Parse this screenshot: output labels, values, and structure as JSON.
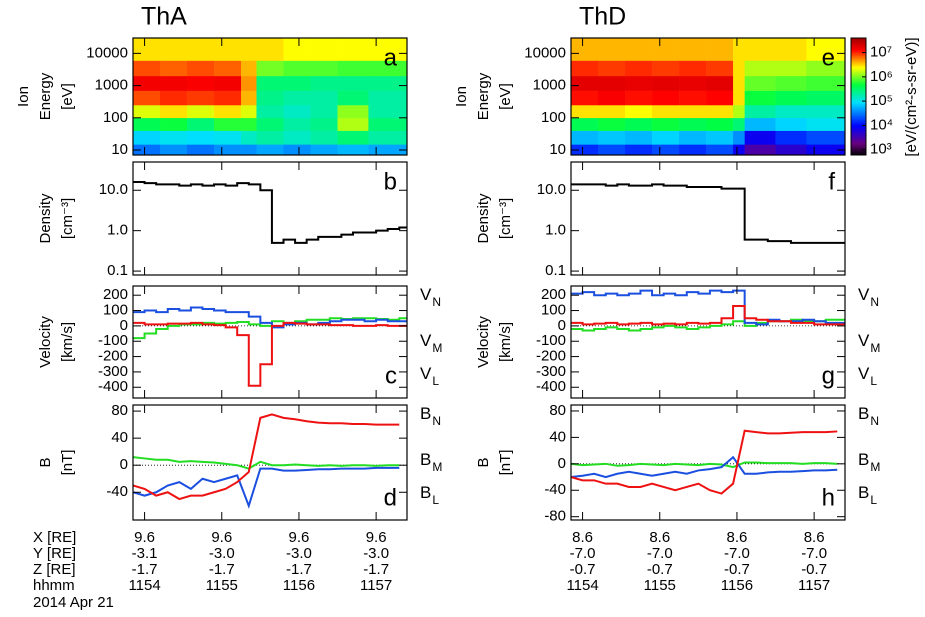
{
  "probes": [
    {
      "title": "ThA",
      "color": "#1a4fe0"
    },
    {
      "title": "ThD",
      "color": "#ee1111"
    }
  ],
  "colorbar": {
    "label": "[eV/(cm²-s-sr-eV)]",
    "clim": [
      600,
      40000000
    ],
    "log": true,
    "ticks": [
      {
        "value": 1000,
        "label": "10³"
      },
      {
        "value": 10000,
        "label": "10⁴"
      },
      {
        "value": 100000,
        "label": "10⁵"
      },
      {
        "value": 1000000,
        "label": "10⁶"
      },
      {
        "value": 10000000,
        "label": "10⁷"
      }
    ]
  },
  "ephemeris": {
    "row_labels": [
      "X [RE]",
      "Y [RE]",
      "Z [RE]",
      "hhmm"
    ],
    "probes": [
      [
        [
          "9.6",
          "9.6",
          "9.6",
          "9.6"
        ],
        [
          "-3.1",
          "-3.0",
          "-3.0",
          "-3.0"
        ],
        [
          "-1.7",
          "-1.7",
          "-1.7",
          "-1.7"
        ],
        [
          "1154",
          "1155",
          "1156",
          "1157"
        ]
      ],
      [
        [
          "8.6",
          "8.6",
          "8.6",
          "8.6"
        ],
        [
          "-7.0",
          "-7.0",
          "-7.0",
          "-7.0"
        ],
        [
          "-0.7",
          "-0.7",
          "-0.7",
          "-0.7"
        ],
        [
          "1154",
          "1155",
          "1156",
          "1157"
        ]
      ]
    ]
  },
  "date": "2014 Apr 21",
  "chart_data": [
    {
      "type": "spectrogram",
      "panel": "a",
      "ylabel": [
        "Ion",
        "Energy"
      ],
      "yunit": "[eV]",
      "ylog": true,
      "ylim": [
        7,
        30000
      ],
      "yticks": [
        10,
        100,
        1000,
        10000
      ],
      "xlim": [
        1153.85,
        1157.4
      ],
      "xticks": [
        1154,
        1155,
        1156,
        1157
      ],
      "x": [
        1153.85,
        1154.2,
        1154.55,
        1154.9,
        1155.25,
        1155.45,
        1155.8,
        1156.15,
        1156.5,
        1156.9,
        1157.4
      ],
      "energy_bins": [
        7,
        15,
        40,
        100,
        250,
        700,
        2000,
        6000,
        30000
      ],
      "values": [
        [
          30000,
          80000,
          400000,
          2000000,
          8000000,
          15000000,
          8000000,
          3000000
        ],
        [
          40000,
          100000,
          500000,
          3000000,
          10000000,
          15000000,
          7000000,
          3000000
        ],
        [
          30000,
          90000,
          300000,
          2000000,
          9000000,
          14000000,
          8000000,
          3000000
        ],
        [
          40000,
          100000,
          600000,
          3000000,
          10000000,
          15000000,
          7000000,
          3000000
        ],
        [
          40000,
          150000,
          600000,
          2000000,
          4000000,
          5000000,
          4000000,
          3000000
        ],
        [
          50000,
          200000,
          300000,
          200000,
          250000,
          300000,
          1000000,
          3000000
        ],
        [
          40000,
          150000,
          200000,
          150000,
          200000,
          300000,
          800000,
          2500000
        ],
        [
          50000,
          200000,
          250000,
          200000,
          200000,
          250000,
          800000,
          2500000
        ],
        [
          60000,
          300000,
          1500000,
          1200000,
          300000,
          250000,
          700000,
          2500000
        ],
        [
          50000,
          200000,
          300000,
          200000,
          200000,
          250000,
          700000,
          2500000
        ]
      ]
    },
    {
      "type": "line",
      "panel": "b",
      "ylabel": [
        "Density"
      ],
      "yunit": "[cm⁻³]",
      "ylog": true,
      "step": true,
      "ylim": [
        0.08,
        50
      ],
      "yticks": [
        0.1,
        {
          "value": 1,
          "label": "1.0"
        },
        {
          "value": 10,
          "label": "10.0"
        }
      ],
      "xlim": [
        1153.85,
        1157.4
      ],
      "xticks": [
        1154,
        1155,
        1156,
        1157
      ],
      "x": [
        1153.85,
        1154,
        1154.15,
        1154.3,
        1154.45,
        1154.6,
        1154.75,
        1154.9,
        1155.05,
        1155.2,
        1155.35,
        1155.5,
        1155.65,
        1155.8,
        1155.95,
        1156.1,
        1156.25,
        1156.4,
        1156.55,
        1156.7,
        1156.85,
        1157,
        1157.15,
        1157.3
      ],
      "series": [
        {
          "color": "#000000",
          "values": [
            16,
            15,
            14,
            14,
            13,
            14,
            13,
            14,
            13,
            15,
            14,
            10,
            0.5,
            0.6,
            0.5,
            0.6,
            0.7,
            0.7,
            0.8,
            0.9,
            0.9,
            1.0,
            1.1,
            1.2
          ]
        }
      ]
    },
    {
      "type": "line",
      "panel": "c",
      "ylabel": [
        "Velocity"
      ],
      "yunit": "[km/s]",
      "step": true,
      "zero_line": true,
      "ylim": [
        -470,
        260
      ],
      "yticks": [
        -400,
        -300,
        -200,
        -100,
        0,
        100,
        200
      ],
      "xlim": [
        1153.85,
        1157.4
      ],
      "xticks": [
        1154,
        1155,
        1156,
        1157
      ],
      "x": [
        1153.85,
        1154,
        1154.15,
        1154.3,
        1154.45,
        1154.6,
        1154.75,
        1154.9,
        1155.05,
        1155.2,
        1155.35,
        1155.5,
        1155.65,
        1155.8,
        1155.95,
        1156.1,
        1156.25,
        1156.4,
        1156.55,
        1156.7,
        1156.85,
        1157,
        1157.15,
        1157.3
      ],
      "series": [
        {
          "name": "VN",
          "color": "#22dd22",
          "values": [
            -80,
            -50,
            -20,
            0,
            10,
            10,
            20,
            15,
            20,
            25,
            10,
            0,
            30,
            20,
            30,
            40,
            40,
            50,
            45,
            50,
            50,
            45,
            40,
            50
          ]
        },
        {
          "name": "VM",
          "color": "#1a4fe0",
          "values": [
            90,
            100,
            90,
            110,
            100,
            120,
            110,
            100,
            90,
            90,
            60,
            20,
            -10,
            10,
            20,
            10,
            20,
            30,
            40,
            40,
            30,
            40,
            30,
            30
          ]
        },
        {
          "name": "VL",
          "color": "#ee1111",
          "values": [
            20,
            10,
            10,
            15,
            15,
            20,
            10,
            5,
            -10,
            -60,
            -390,
            -250,
            0,
            20,
            15,
            10,
            10,
            5,
            5,
            0,
            0,
            5,
            0,
            0
          ]
        }
      ]
    },
    {
      "type": "line",
      "panel": "d",
      "ylabel": [
        "B"
      ],
      "yunit": "[nT]",
      "zero_line": true,
      "ylim": [
        -81,
        89
      ],
      "yticks": [
        -40,
        0,
        40,
        80
      ],
      "xlim": [
        1153.85,
        1157.4
      ],
      "xticks": [
        1154,
        1155,
        1156,
        1157
      ],
      "x": [
        1153.85,
        1154,
        1154.15,
        1154.3,
        1154.45,
        1154.6,
        1154.75,
        1154.9,
        1155.05,
        1155.2,
        1155.35,
        1155.5,
        1155.65,
        1155.8,
        1155.95,
        1156.1,
        1156.25,
        1156.4,
        1156.55,
        1156.7,
        1156.85,
        1157,
        1157.15,
        1157.3
      ],
      "series": [
        {
          "name": "BN",
          "color": "#22dd22",
          "values": [
            12,
            10,
            8,
            8,
            5,
            6,
            5,
            4,
            2,
            0,
            -5,
            5,
            0,
            0,
            1,
            0,
            -1,
            0,
            -1,
            0,
            0,
            -1,
            0,
            0
          ]
        },
        {
          "name": "BM",
          "color": "#1a4fe0",
          "values": [
            -40,
            -45,
            -40,
            -30,
            -25,
            -35,
            -20,
            -25,
            -20,
            -15,
            -60,
            -5,
            -5,
            -8,
            -8,
            -7,
            -6,
            -6,
            -5,
            -5,
            -5,
            -4,
            -4,
            -4
          ]
        },
        {
          "name": "BL",
          "color": "#ee1111",
          "values": [
            -30,
            -35,
            -45,
            -40,
            -50,
            -45,
            -45,
            -40,
            -35,
            -25,
            -10,
            70,
            75,
            70,
            68,
            65,
            63,
            62,
            62,
            61,
            61,
            60,
            60,
            60
          ]
        }
      ]
    },
    {
      "type": "spectrogram",
      "panel": "e",
      "ylabel": [
        "Ion",
        "Energy"
      ],
      "yunit": "[eV]",
      "ylog": true,
      "ylim": [
        7,
        30000
      ],
      "yticks": [
        10,
        100,
        1000,
        10000
      ],
      "xlim": [
        1153.85,
        1157.4
      ],
      "xticks": [
        1154,
        1155,
        1156,
        1157
      ],
      "x": [
        1153.85,
        1154.2,
        1154.55,
        1154.9,
        1155.25,
        1155.6,
        1155.95,
        1156.1,
        1156.5,
        1156.9,
        1157.4
      ],
      "energy_bins": [
        7,
        15,
        40,
        100,
        250,
        700,
        2000,
        6000,
        30000
      ],
      "values": [
        [
          15000,
          60000,
          400000,
          3000000,
          12000000,
          18000000,
          10000000,
          4000000
        ],
        [
          20000,
          70000,
          500000,
          3000000,
          14000000,
          18000000,
          9000000,
          4000000
        ],
        [
          15000,
          60000,
          400000,
          2500000,
          12000000,
          17000000,
          10000000,
          4000000
        ],
        [
          20000,
          80000,
          500000,
          3000000,
          13000000,
          18000000,
          9000000,
          4000000
        ],
        [
          15000,
          60000,
          400000,
          3000000,
          12000000,
          17000000,
          10000000,
          4000000
        ],
        [
          20000,
          70000,
          450000,
          3000000,
          13000000,
          18000000,
          9000000,
          4000000
        ],
        [
          8000,
          40000,
          300000,
          1500000,
          3000000,
          3000000,
          3000000,
          3000000
        ],
        [
          3000,
          8000,
          60000,
          200000,
          500000,
          900000,
          1500000,
          3000000
        ],
        [
          5000,
          15000,
          80000,
          150000,
          400000,
          800000,
          1500000,
          3000000
        ],
        [
          8000,
          20000,
          100000,
          150000,
          350000,
          700000,
          1200000,
          2500000
        ]
      ]
    },
    {
      "type": "line",
      "panel": "f",
      "ylabel": [
        "Density"
      ],
      "yunit": "[cm⁻³]",
      "ylog": true,
      "step": true,
      "ylim": [
        0.08,
        50
      ],
      "yticks": [
        0.1,
        {
          "value": 1,
          "label": "1.0"
        },
        {
          "value": 10,
          "label": "10.0"
        }
      ],
      "xlim": [
        1153.85,
        1157.4
      ],
      "xticks": [
        1154,
        1155,
        1156,
        1157
      ],
      "x": [
        1153.85,
        1154,
        1154.15,
        1154.3,
        1154.45,
        1154.6,
        1154.75,
        1154.9,
        1155.05,
        1155.2,
        1155.35,
        1155.5,
        1155.65,
        1155.8,
        1155.95,
        1156.1,
        1156.25,
        1156.4,
        1156.55,
        1156.7,
        1156.85,
        1157,
        1157.15,
        1157.3
      ],
      "series": [
        {
          "color": "#000000",
          "values": [
            14,
            14,
            14,
            13,
            14,
            13,
            13,
            14,
            13,
            13,
            12,
            12,
            12,
            11,
            11,
            0.6,
            0.6,
            0.55,
            0.55,
            0.5,
            0.5,
            0.5,
            0.5,
            0.5
          ]
        }
      ]
    },
    {
      "type": "line",
      "panel": "g",
      "ylabel": [
        "Velocity"
      ],
      "yunit": "[km/s]",
      "step": true,
      "zero_line": true,
      "ylim": [
        -470,
        260
      ],
      "yticks": [
        -400,
        -300,
        -200,
        -100,
        0,
        100,
        200
      ],
      "xlim": [
        1153.85,
        1157.4
      ],
      "xticks": [
        1154,
        1155,
        1156,
        1157
      ],
      "x": [
        1153.85,
        1154,
        1154.15,
        1154.3,
        1154.45,
        1154.6,
        1154.75,
        1154.9,
        1155.05,
        1155.2,
        1155.35,
        1155.5,
        1155.65,
        1155.8,
        1155.95,
        1156.1,
        1156.25,
        1156.4,
        1156.55,
        1156.7,
        1156.85,
        1157,
        1157.15,
        1157.3
      ],
      "series": [
        {
          "name": "VN",
          "color": "#22dd22",
          "values": [
            -20,
            -30,
            -20,
            -10,
            -20,
            -30,
            -20,
            -10,
            0,
            -10,
            -20,
            -10,
            0,
            10,
            30,
            0,
            20,
            30,
            30,
            40,
            30,
            30,
            40,
            40
          ]
        },
        {
          "name": "VM",
          "color": "#1a4fe0",
          "values": [
            210,
            220,
            200,
            210,
            200,
            210,
            230,
            200,
            210,
            200,
            220,
            210,
            230,
            220,
            230,
            20,
            10,
            40,
            30,
            30,
            40,
            30,
            20,
            20
          ]
        },
        {
          "name": "VL",
          "color": "#ee1111",
          "values": [
            20,
            10,
            15,
            20,
            10,
            15,
            20,
            10,
            15,
            10,
            20,
            15,
            20,
            50,
            130,
            50,
            40,
            30,
            30,
            20,
            20,
            10,
            10,
            10
          ]
        }
      ]
    },
    {
      "type": "line",
      "panel": "h",
      "ylabel": [
        "B"
      ],
      "yunit": "[nT]",
      "zero_line": true,
      "ylim": [
        -85,
        89
      ],
      "yticks": [
        -80,
        -40,
        0,
        40,
        80
      ],
      "xlim": [
        1153.85,
        1157.4
      ],
      "xticks": [
        1154,
        1155,
        1156,
        1157
      ],
      "x": [
        1153.85,
        1154,
        1154.15,
        1154.3,
        1154.45,
        1154.6,
        1154.75,
        1154.9,
        1155.05,
        1155.2,
        1155.35,
        1155.5,
        1155.65,
        1155.8,
        1155.95,
        1156.1,
        1156.25,
        1156.4,
        1156.55,
        1156.7,
        1156.85,
        1157,
        1157.15,
        1157.3
      ],
      "series": [
        {
          "name": "BN",
          "color": "#22dd22",
          "values": [
            0,
            -2,
            -1,
            0,
            -3,
            -2,
            0,
            -1,
            -2,
            0,
            -1,
            -2,
            0,
            -1,
            -5,
            2,
            2,
            1,
            1,
            1,
            0,
            1,
            1,
            0
          ]
        },
        {
          "name": "BM",
          "color": "#1a4fe0",
          "values": [
            -20,
            -18,
            -15,
            -20,
            -15,
            -12,
            -15,
            -18,
            -15,
            -12,
            -15,
            -10,
            -8,
            -5,
            10,
            -15,
            -15,
            -13,
            -12,
            -12,
            -11,
            -10,
            -10,
            -9
          ]
        },
        {
          "name": "BL",
          "color": "#ee1111",
          "values": [
            -20,
            -25,
            -25,
            -30,
            -30,
            -35,
            -35,
            -30,
            -35,
            -40,
            -35,
            -30,
            -40,
            -45,
            -30,
            50,
            48,
            46,
            46,
            47,
            48,
            48,
            48,
            49
          ]
        }
      ]
    }
  ]
}
